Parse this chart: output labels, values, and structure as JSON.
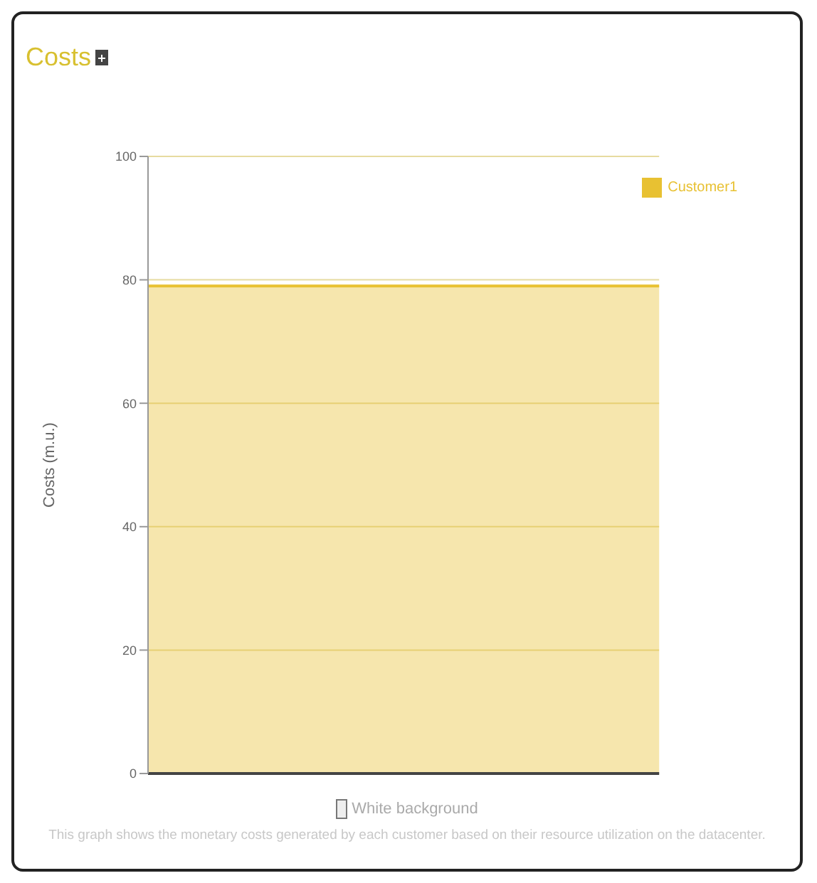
{
  "chart_data": {
    "type": "area",
    "title": "Costs",
    "ylabel": "Costs (m.u.)",
    "categories": [
      null,
      null,
      null,
      null,
      null
    ],
    "series": [
      {
        "name": "Customer1",
        "color": "#e8c132",
        "values": [
          79,
          79,
          79,
          79,
          79
        ]
      }
    ],
    "ylim": [
      0,
      100
    ],
    "yticks": [
      0,
      20,
      40,
      60,
      80,
      100
    ],
    "grid": "y",
    "legend": "top right",
    "tick_labels": "y",
    "annotations": [
      "White background",
      "This graph shows the monetary costs generated by each customer based on their resource utilization on the datacenter."
    ]
  }
}
